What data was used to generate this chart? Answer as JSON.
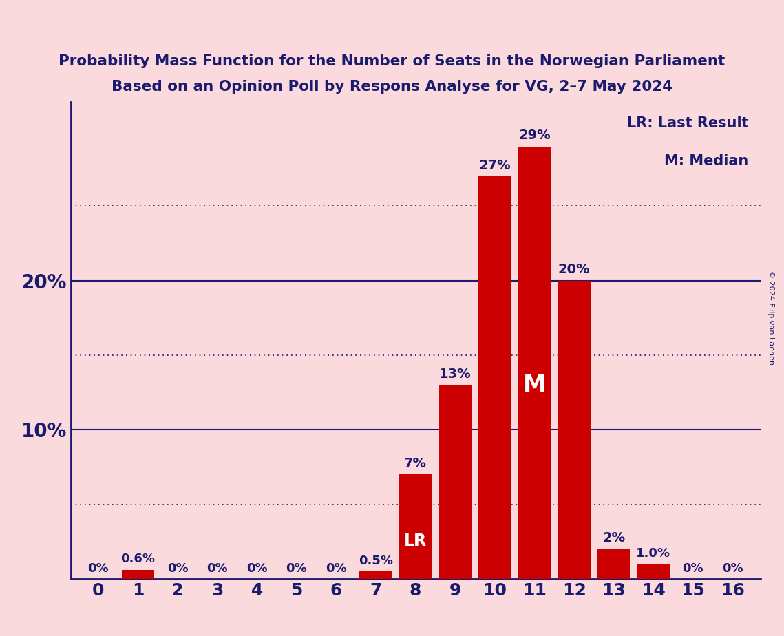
{
  "subtitle1": "Probability Mass Function for the Number of Seats in the Norwegian Parliament",
  "subtitle2": "Based on an Opinion Poll by Respons Analyse for VG, 2–7 May 2024",
  "copyright": "© 2024 Filip van Laenen",
  "seats": [
    0,
    1,
    2,
    3,
    4,
    5,
    6,
    7,
    8,
    9,
    10,
    11,
    12,
    13,
    14,
    15,
    16
  ],
  "probabilities": [
    0.0,
    0.6,
    0.0,
    0.0,
    0.0,
    0.0,
    0.0,
    0.5,
    7.0,
    13.0,
    27.0,
    29.0,
    20.0,
    2.0,
    1.0,
    0.0,
    0.0
  ],
  "bar_color": "#CC0000",
  "bg_color": "#FADADD",
  "text_color": "#1a1a6e",
  "last_result_seat": 8,
  "median_seat": 11,
  "legend_lr": "LR: Last Result",
  "legend_m": "M: Median",
  "solid_lines": [
    10,
    20
  ],
  "dotted_lines": [
    5,
    15,
    25
  ],
  "ylim": [
    0,
    32
  ],
  "bar_label_zero": "0%",
  "bar_label_06": "0.6%",
  "bar_label_05": "0.5%"
}
